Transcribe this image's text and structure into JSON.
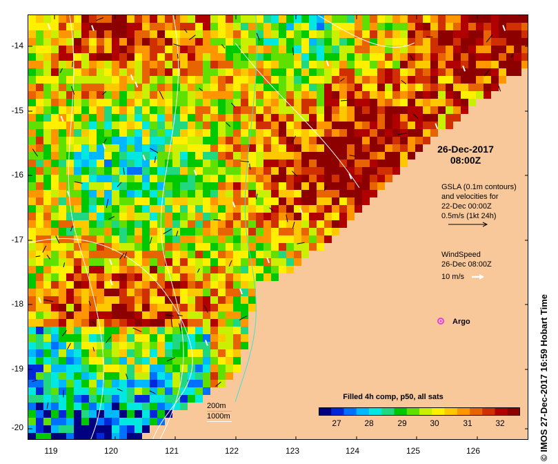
{
  "map": {
    "date_line1": "26-Dec-2017",
    "date_line2": "08:00Z",
    "gsla": {
      "line1": "GSLA (0.1m contours)",
      "line2": "and velocities for",
      "line3": "22-Dec 00:00Z",
      "line4": "0.5m/s (1kt 24h)"
    },
    "wind": {
      "line1": "WindSpeed",
      "line2": "26-Dec 08:00Z",
      "line3": "10 m/s"
    },
    "argo_label": "Argo",
    "contour_legend": {
      "line1": "200m",
      "line2": "1000m"
    },
    "credit": "IMOS 27-Dec-2017 16:59 Hobart Time",
    "credit_symbol": "©",
    "colorbar": {
      "title": "Filled 4h comp, p50, all sats",
      "ticks": [
        "27",
        "28",
        "29",
        "30",
        "31",
        "32"
      ],
      "range": [
        26.5,
        32.5
      ],
      "colors": [
        "#000080",
        "#0028d8",
        "#0070ff",
        "#00b8ff",
        "#00e8e0",
        "#20d880",
        "#00c800",
        "#60e000",
        "#c8f000",
        "#fff000",
        "#ffc800",
        "#ff9600",
        "#e86400",
        "#d03000",
        "#b00000",
        "#8c0000"
      ]
    },
    "axes": {
      "lat_ticks": [
        "-14",
        "-15",
        "-16",
        "-17",
        "-18",
        "-19",
        "-20"
      ],
      "lon_ticks": [
        "119",
        "120",
        "121",
        "122",
        "123",
        "124",
        "125",
        "126"
      ]
    },
    "colors": {
      "land": "#f9c89a",
      "argo": "#e040e0",
      "gsla_contour": "#ffffff",
      "bathy_200": "#40e0d0"
    }
  }
}
